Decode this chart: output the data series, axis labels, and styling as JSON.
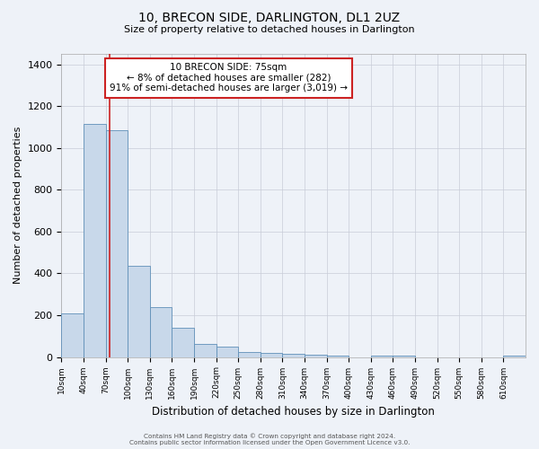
{
  "title": "10, BRECON SIDE, DARLINGTON, DL1 2UZ",
  "subtitle": "Size of property relative to detached houses in Darlington",
  "xlabel": "Distribution of detached houses by size in Darlington",
  "ylabel": "Number of detached properties",
  "bar_color": "#c8d8ea",
  "bar_edge_color": "#6090b8",
  "bg_color": "#eef2f8",
  "grid_color": "#c8ccd8",
  "annotation_box_color": "#ffffff",
  "annotation_border_color": "#cc2222",
  "red_line_color": "#cc2222",
  "bin_labels": [
    "10sqm",
    "40sqm",
    "70sqm",
    "100sqm",
    "130sqm",
    "160sqm",
    "190sqm",
    "220sqm",
    "250sqm",
    "280sqm",
    "310sqm",
    "340sqm",
    "370sqm",
    "400sqm",
    "430sqm",
    "460sqm",
    "490sqm",
    "520sqm",
    "550sqm",
    "580sqm",
    "610sqm"
  ],
  "bar_values": [
    210,
    1115,
    1085,
    435,
    240,
    142,
    62,
    48,
    25,
    20,
    15,
    10,
    8,
    0,
    8,
    8,
    0,
    0,
    0,
    0,
    5
  ],
  "bin_edges": [
    10,
    40,
    70,
    100,
    130,
    160,
    190,
    220,
    250,
    280,
    310,
    340,
    370,
    400,
    430,
    460,
    490,
    520,
    550,
    580,
    610,
    640
  ],
  "ylim": [
    0,
    1450
  ],
  "yticks": [
    0,
    200,
    400,
    600,
    800,
    1000,
    1200,
    1400
  ],
  "red_line_x": 75,
  "annotation_text_line1": "10 BRECON SIDE: 75sqm",
  "annotation_text_line2": "← 8% of detached houses are smaller (282)",
  "annotation_text_line3": "91% of semi-detached houses are larger (3,019) →",
  "footer1": "Contains HM Land Registry data © Crown copyright and database right 2024.",
  "footer2": "Contains public sector information licensed under the Open Government Licence v3.0."
}
